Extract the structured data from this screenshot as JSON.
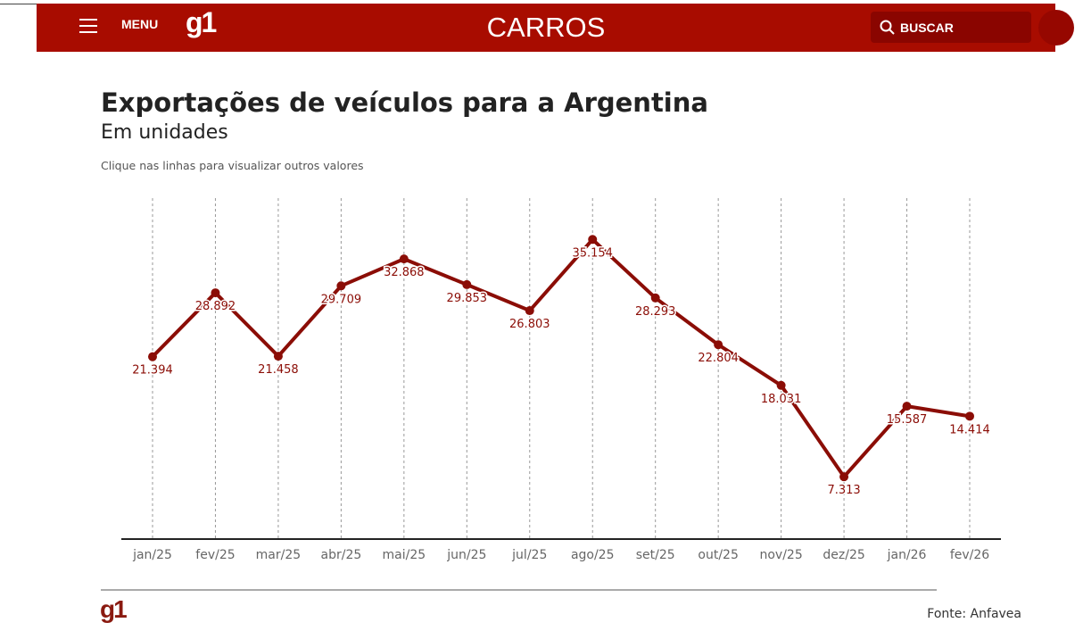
{
  "header": {
    "menu_label": "MENU",
    "logo": "g1",
    "section": "CARROS",
    "search_label": "BUSCAR",
    "brand_color": "#a80c00"
  },
  "chart_data": {
    "type": "line",
    "title": "Exportações de veículos para a Argentina",
    "subtitle": "Em unidades",
    "hint": "Clique nas linhas para visualizar outros valores",
    "categories": [
      "jan/25",
      "fev/25",
      "mar/25",
      "abr/25",
      "mai/25",
      "jun/25",
      "jul/25",
      "ago/25",
      "set/25",
      "out/25",
      "nov/25",
      "dez/25",
      "jan/26",
      "fev/26"
    ],
    "values": [
      21394,
      28892,
      21458,
      29709,
      32868,
      29853,
      26803,
      35154,
      28293,
      22804,
      18031,
      7313,
      15587,
      14414
    ],
    "labels": [
      "21.394",
      "28.892",
      "21.458",
      "29.709",
      "32.868",
      "29.853",
      "26.803",
      "35.154",
      "28.293",
      "22.804",
      "18.031",
      "7.313",
      "15.587",
      "14.414"
    ],
    "ylim": [
      0,
      40000
    ],
    "grid": "vertical dashed",
    "color": "#8b0d06"
  },
  "footer": {
    "logo": "g1",
    "source": "Fonte: Anfavea"
  }
}
